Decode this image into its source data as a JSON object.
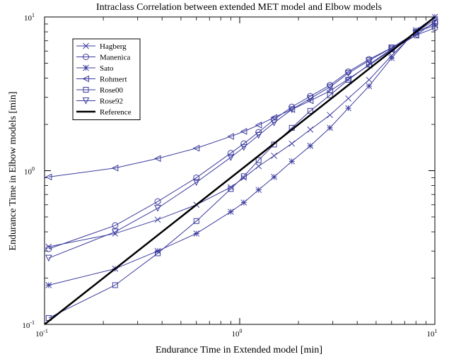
{
  "chart_data": {
    "type": "line",
    "title": "Intraclass Correlation between extended MET model and Elbow models",
    "xlabel": "Endurance Time in Extended model [min]",
    "ylabel": "Endurance Time in Elbow models [min]",
    "xscale": "log",
    "yscale": "log",
    "xlim": [
      0.1,
      10
    ],
    "ylim": [
      0.1,
      10
    ],
    "grid": false,
    "legend_position": "top-left",
    "x_ticks": [
      {
        "value": 0.1,
        "base": "10",
        "exp": "-1"
      },
      {
        "value": 1,
        "base": "10",
        "exp": "0"
      },
      {
        "value": 10,
        "base": "10",
        "exp": "1"
      }
    ],
    "y_ticks": [
      {
        "value": 0.1,
        "base": "10",
        "exp": "-1"
      },
      {
        "value": 1,
        "base": "10",
        "exp": "0"
      },
      {
        "value": 10,
        "base": "10",
        "exp": "1"
      }
    ],
    "series": [
      {
        "name": "Hagberg",
        "marker": "x",
        "color": "#3b3b9e",
        "x": [
          0.105,
          0.23,
          0.38,
          0.6,
          0.9,
          1.05,
          1.25,
          1.5,
          1.85,
          2.3,
          2.9,
          3.6,
          4.6,
          6,
          8,
          10
        ],
        "y": [
          0.32,
          0.39,
          0.48,
          0.6,
          0.78,
          0.9,
          1.07,
          1.25,
          1.5,
          1.85,
          2.3,
          2.95,
          3.9,
          5.6,
          8,
          8.8
        ]
      },
      {
        "name": "Manenica",
        "marker": "circle",
        "color": "#3b3b9e",
        "x": [
          0.105,
          0.23,
          0.38,
          0.6,
          0.9,
          1.05,
          1.25,
          1.5,
          1.85,
          2.3,
          2.9,
          3.6,
          4.6,
          6,
          8,
          10
        ],
        "y": [
          0.31,
          0.44,
          0.63,
          0.9,
          1.3,
          1.5,
          1.78,
          2.15,
          2.6,
          3.05,
          3.6,
          4.4,
          5.3,
          6.3,
          7.6,
          8.5
        ]
      },
      {
        "name": "Sato",
        "marker": "asterisk",
        "color": "#3b3b9e",
        "x": [
          0.105,
          0.23,
          0.38,
          0.6,
          0.9,
          1.05,
          1.25,
          1.5,
          1.85,
          2.3,
          2.9,
          3.6,
          4.6,
          6,
          8,
          10
        ],
        "y": [
          0.18,
          0.23,
          0.3,
          0.39,
          0.54,
          0.62,
          0.75,
          0.91,
          1.15,
          1.45,
          1.9,
          2.55,
          3.55,
          5.4,
          8.2,
          10
        ]
      },
      {
        "name": "Rohmert",
        "marker": "triangle-left",
        "color": "#3b3b9e",
        "x": [
          0.105,
          0.23,
          0.38,
          0.6,
          0.9,
          1.05,
          1.25,
          1.5,
          1.85,
          2.3,
          2.9,
          3.6,
          4.6,
          6,
          8,
          10
        ],
        "y": [
          0.91,
          1.04,
          1.2,
          1.4,
          1.67,
          1.8,
          1.98,
          2.22,
          2.5,
          2.85,
          3.3,
          3.95,
          4.85,
          6.1,
          7.6,
          9.3
        ]
      },
      {
        "name": "Rose00",
        "marker": "square",
        "color": "#3b3b9e",
        "x": [
          0.105,
          0.23,
          0.38,
          0.6,
          0.9,
          1.05,
          1.25,
          1.5,
          1.85,
          2.3,
          2.9,
          3.6,
          4.6,
          6,
          8,
          10
        ],
        "y": [
          0.11,
          0.18,
          0.29,
          0.47,
          0.76,
          0.92,
          1.17,
          1.48,
          1.9,
          2.45,
          3.1,
          3.9,
          4.9,
          6.2,
          7.9,
          9.1
        ]
      },
      {
        "name": "Rose92",
        "marker": "triangle-down",
        "color": "#3b3b9e",
        "x": [
          0.105,
          0.23,
          0.38,
          0.6,
          0.9,
          1.05,
          1.25,
          1.5,
          1.85,
          2.3,
          2.9,
          3.6,
          4.6,
          6,
          8,
          10
        ],
        "y": [
          0.27,
          0.4,
          0.57,
          0.84,
          1.22,
          1.42,
          1.7,
          2.05,
          2.5,
          2.95,
          3.5,
          4.3,
          5.2,
          6.3,
          7.9,
          9.6
        ]
      },
      {
        "name": "Reference",
        "marker": "none",
        "color": "#000000",
        "line_width": 2.5,
        "x": [
          0.1,
          10
        ],
        "y": [
          0.1,
          10
        ]
      }
    ]
  }
}
